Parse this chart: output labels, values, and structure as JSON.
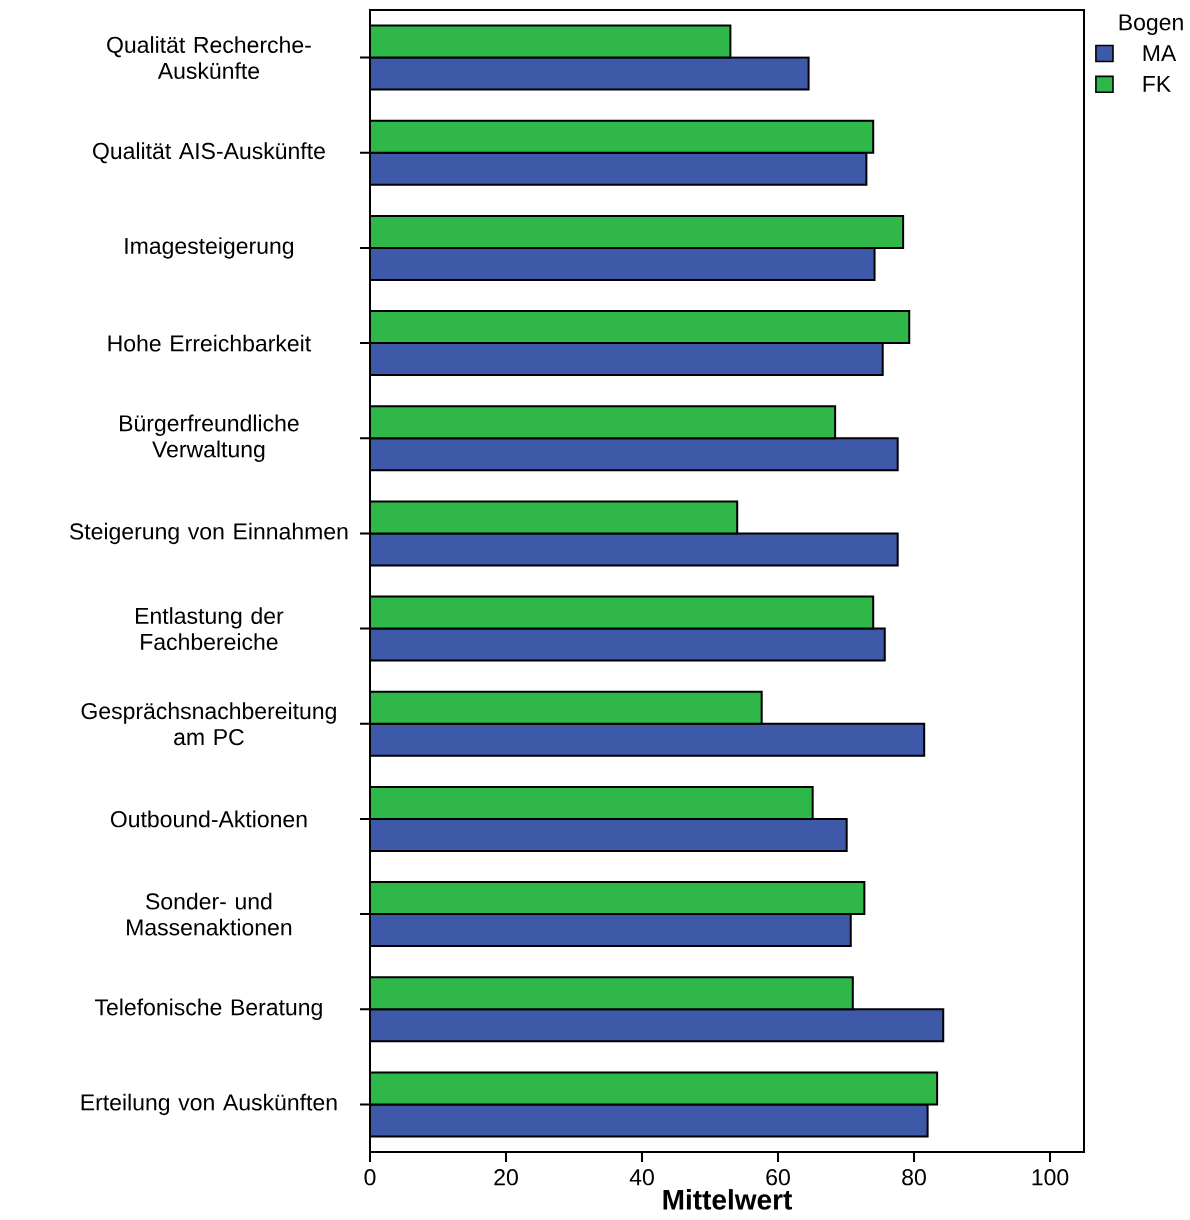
{
  "chart_data": {
    "type": "bar",
    "orientation": "horizontal",
    "xlabel": "Mittelwert",
    "legend_title": "Bogen",
    "legend": "right",
    "categories": [
      "Qualität Recherche-Auskünfte",
      "Qualität AIS-Auskünfte",
      "Imagesteigerung",
      "Hohe Erreichbarkeit",
      "Bürgerfreundliche Verwaltung",
      "Steigerung von Einnahmen",
      "Entlastung der Fachbereiche",
      "Gesprächsnachbereitung am PC",
      "Outbound-Aktionen",
      "Sonder- und Massenaktionen",
      "Telefonische Beratung",
      "Erteilung von Auskünften"
    ],
    "series": [
      {
        "name": "MA",
        "color": "#3d59a8",
        "values": [
          64.5,
          73.0,
          74.2,
          75.4,
          77.6,
          77.6,
          75.7,
          81.5,
          70.1,
          70.7,
          84.3,
          82.0
        ]
      },
      {
        "name": "FK",
        "color": "#2fb74a",
        "values": [
          53.0,
          74.0,
          78.4,
          79.3,
          68.4,
          54.0,
          74.0,
          57.6,
          65.1,
          72.7,
          71.0,
          83.4
        ]
      }
    ],
    "xlim": [
      0,
      105
    ],
    "xticks": [
      0,
      20,
      40,
      60,
      80,
      100
    ]
  }
}
